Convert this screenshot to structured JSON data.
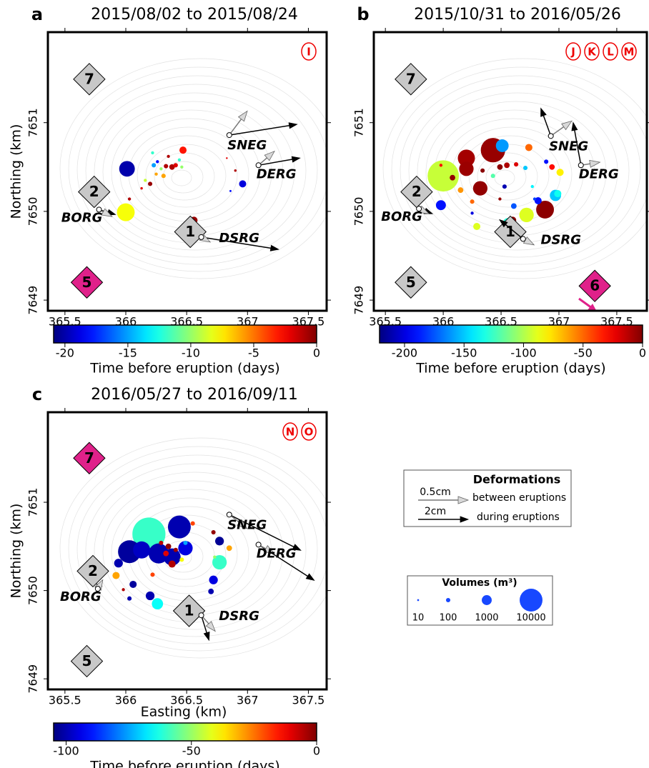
{
  "chart_data": [
    {
      "type": "scatter",
      "panel": "a",
      "title": "2015/08/02 to 2015/08/24",
      "ylabel": "Northing (km)",
      "xlim": [
        365.36,
        367.65
      ],
      "ylim": [
        7648.88,
        7652.02
      ],
      "xticks": [
        365.5,
        366,
        366.5,
        367,
        367.5
      ],
      "yticks": [
        7649,
        7650,
        7651
      ],
      "eruptions": [
        "I"
      ],
      "sites": [
        {
          "name": "7",
          "x": 365.7,
          "y": 7651.49,
          "color": "#c8c8c8"
        },
        {
          "name": "2",
          "x": 365.74,
          "y": 7650.22,
          "color": "#c8c8c8"
        },
        {
          "name": "1",
          "x": 366.53,
          "y": 7649.77,
          "color": "#c8c8c8"
        },
        {
          "name": "5",
          "x": 365.68,
          "y": 7649.2,
          "color": "#e0218a"
        }
      ],
      "stations": [
        {
          "name": "SNEG",
          "x": 366.85,
          "y": 7650.86,
          "inter": [
            0.18,
            0.24
          ],
          "co": [
            2.71,
            0.43
          ]
        },
        {
          "name": "DERG",
          "x": 367.09,
          "y": 7650.52,
          "inter": [
            0.16,
            0.14
          ],
          "co": [
            1.66,
            0.29
          ]
        },
        {
          "name": "BORG",
          "x": 365.78,
          "y": 7650.02,
          "inter": [
            0.13,
            -0.07
          ],
          "co": [
            0.66,
            -0.2
          ]
        },
        {
          "name": "DSRG",
          "x": 366.62,
          "y": 7649.71,
          "inter": [
            0.09,
            -0.05
          ],
          "co": [
            3.09,
            -0.49
          ]
        }
      ],
      "points": {
        "x": [
          366.0,
          366.01,
          366.47,
          366.96,
          366.56,
          366.38,
          366.33,
          366.41,
          366.23,
          366.31,
          366.2,
          366.26,
          366.22,
          366.16,
          366.44,
          366.29,
          366.03,
          366.46,
          366.35,
          366.25,
          366.13,
          366.9,
          366.86,
          366.83
        ],
        "y": [
          7649.99,
          7650.48,
          7650.69,
          7650.31,
          7649.9,
          7650.5,
          7650.51,
          7650.52,
          7650.52,
          7650.4,
          7650.31,
          7650.56,
          7650.66,
          7650.35,
          7650.58,
          7650.48,
          7650.14,
          7650.5,
          7650.62,
          7650.42,
          7650.26,
          7650.46,
          7650.23,
          7650.6
        ],
        "t": [
          -8,
          -20,
          -3,
          -19,
          -0.5,
          -1,
          -1,
          -2,
          -15,
          -6,
          -0.5,
          -18,
          -12,
          -9,
          -12,
          -10,
          -1,
          -10,
          -1,
          -6,
          -2,
          -1,
          -18,
          -2
        ],
        "volume": [
          5000,
          3500,
          400,
          400,
          400,
          200,
          100,
          100,
          100,
          100,
          100,
          40,
          40,
          40,
          40,
          40,
          40,
          40,
          40,
          40,
          20,
          20,
          12,
          8
        ]
      },
      "colorbar": {
        "label": "Time before eruption (days)",
        "clim": [
          -20.9,
          0
        ],
        "ticks": [
          -20,
          -15,
          -10,
          -5,
          0
        ]
      }
    },
    {
      "type": "scatter",
      "panel": "b",
      "title": "2015/10/31 to 2016/05/26",
      "xlim": [
        365.4,
        367.76
      ],
      "ylim": [
        7648.88,
        7652.02
      ],
      "xticks": [
        365.5,
        366,
        366.5,
        367,
        367.5
      ],
      "yticks": [
        7649,
        7650,
        7651
      ],
      "eruptions": [
        "J",
        "K",
        "L",
        "M"
      ],
      "sites": [
        {
          "name": "7",
          "x": 365.72,
          "y": 7651.49,
          "color": "#c8c8c8"
        },
        {
          "name": "2",
          "x": 365.77,
          "y": 7650.22,
          "color": "#c8c8c8"
        },
        {
          "name": "1",
          "x": 366.58,
          "y": 7649.77,
          "color": "#c8c8c8"
        },
        {
          "name": "5",
          "x": 365.72,
          "y": 7649.2,
          "color": "#c8c8c8"
        },
        {
          "name": "6",
          "x": 367.31,
          "y": 7649.16,
          "color": "#e0218a"
        }
      ],
      "stations": [
        {
          "name": "SNEG",
          "x": 366.93,
          "y": 7650.85,
          "inter": [
            0.21,
            0.15
          ],
          "co": [
            -0.4,
            1.11
          ]
        },
        {
          "name": "DERG",
          "x": 367.19,
          "y": 7650.52,
          "inter": [
            0.19,
            0.03
          ],
          "co": [
            -0.31,
            1.71
          ]
        },
        {
          "name": "BORG",
          "x": 365.79,
          "y": 7650.03,
          "inter": [
            0.1,
            -0.05
          ],
          "co": [
            0.54,
            -0.2
          ]
        },
        {
          "name": "DSRG",
          "x": 366.69,
          "y": 7649.69,
          "inter": [
            0.11,
            -0.06
          ],
          "co": [
            -0.94,
            0.77
          ]
        }
      ],
      "points": {
        "x": [
          366.0,
          366.43,
          366.88,
          366.2,
          366.2,
          366.32,
          366.72,
          366.51,
          366.97,
          365.98,
          366.56,
          366.6,
          366.74,
          367.01,
          366.29,
          366.82,
          366.99,
          366.61,
          366.08,
          366.15,
          366.49,
          366.55,
          366.94,
          366.63,
          366.71,
          366.89,
          366.25,
          366.43,
          366.53,
          366.34,
          366.77,
          366.25,
          365.98,
          366.79,
          366.49
        ],
        "y": [
          7650.4,
          7650.69,
          7650.02,
          7650.6,
          7650.48,
          7650.26,
          7649.96,
          7650.74,
          7650.18,
          7650.07,
          7649.87,
          7649.9,
          7650.72,
          7650.44,
          7649.83,
          7650.12,
          7650.2,
          7650.06,
          7650.38,
          7650.24,
          7650.5,
          7650.52,
          7650.5,
          7650.53,
          7650.49,
          7650.56,
          7650.11,
          7650.4,
          7650.28,
          7650.46,
          7650.28,
          7649.98,
          7650.52,
          7650.14,
          7650.14
        ],
        "t": [
          -95,
          -5,
          -3,
          -8,
          -6,
          -4,
          -90,
          -160,
          -150,
          -190,
          -130,
          -2,
          -50,
          -80,
          -90,
          -190,
          -135,
          -175,
          -4,
          -60,
          -3,
          -10,
          -30,
          -20,
          -150,
          -190,
          -50,
          -120,
          -210,
          -2,
          -140,
          -200,
          -30,
          -180,
          -5
        ],
        "volume": [
          24000,
          12000,
          5000,
          4500,
          2800,
          2800,
          2800,
          2000,
          1400,
          1000,
          1000,
          400,
          400,
          400,
          400,
          400,
          400,
          200,
          200,
          200,
          200,
          200,
          200,
          100,
          100,
          100,
          100,
          100,
          100,
          100,
          40,
          40,
          40,
          40,
          40
        ]
      },
      "colorbar": {
        "label": "Time before eruption (days)",
        "clim": [
          -221,
          0
        ],
        "ticks": [
          -200,
          -150,
          -100,
          -50,
          0
        ]
      }
    },
    {
      "type": "scatter",
      "panel": "c",
      "title": "2016/05/27 to 2016/09/11",
      "xlabel": "Easting (km)",
      "ylabel": "Northing (km)",
      "xlim": [
        365.36,
        367.65
      ],
      "ylim": [
        7648.88,
        7652.02
      ],
      "xticks": [
        365.5,
        366,
        366.5,
        367,
        367.5
      ],
      "yticks": [
        7649,
        7650,
        7651
      ],
      "eruptions": [
        "N",
        "O"
      ],
      "sites": [
        {
          "name": "7",
          "x": 365.7,
          "y": 7651.5,
          "color": "#e0218a"
        },
        {
          "name": "2",
          "x": 365.73,
          "y": 7650.22,
          "color": "#c8c8c8"
        },
        {
          "name": "1",
          "x": 366.52,
          "y": 7649.77,
          "color": "#c8c8c8"
        },
        {
          "name": "5",
          "x": 365.68,
          "y": 7649.2,
          "color": "#c8c8c8"
        }
      ],
      "stations": [
        {
          "name": "SNEG",
          "x": 366.85,
          "y": 7650.86,
          "inter": [
            0.18,
            -0.14
          ],
          "co": [
            2.86,
            -1.43
          ]
        },
        {
          "name": "DERG",
          "x": 367.09,
          "y": 7650.52,
          "inter": [
            0.16,
            -0.09
          ],
          "co": [
            2.23,
            -1.43
          ]
        },
        {
          "name": "BORG",
          "x": 365.77,
          "y": 7650.02,
          "inter": [
            0.05,
            0.09
          ],
          "co": [
            -0.06,
            -0.14
          ]
        },
        {
          "name": "DSRG",
          "x": 366.62,
          "y": 7649.72,
          "inter": [
            0.14,
            -0.16
          ],
          "co": [
            0.31,
            -1.0
          ]
        }
      ],
      "points": {
        "x": [
          366.19,
          366.44,
          366.03,
          366.27,
          366.38,
          366.13,
          366.49,
          366.77,
          366.26,
          365.94,
          366.77,
          366.72,
          366.2,
          366.06,
          365.92,
          366.38,
          366.7,
          366.35,
          366.33,
          366.85,
          366.41,
          366.29,
          366.46,
          366.03,
          366.72,
          366.49,
          366.22,
          366.55,
          365.98,
          366.73
        ],
        "y": [
          7650.64,
          7650.72,
          7650.44,
          7650.42,
          7650.38,
          7650.46,
          7650.48,
          7650.32,
          7649.85,
          7650.31,
          7650.56,
          7650.12,
          7649.94,
          7650.07,
          7650.17,
          7650.3,
          7649.99,
          7650.5,
          7650.42,
          7650.48,
          7650.46,
          7650.54,
          7650.35,
          7649.91,
          7650.66,
          7650.54,
          7650.18,
          7650.76,
          7650.01,
          7650.38
        ],
        "t": [
          -60,
          -100,
          -102,
          -100,
          -100,
          -98,
          -95,
          -60,
          -65,
          -100,
          -103,
          -95,
          -100,
          -102,
          -30,
          -5,
          -100,
          -2,
          -10,
          -30,
          -3,
          -6,
          -40,
          -100,
          -2,
          -75,
          -20,
          -20,
          -5,
          -50
        ],
        "volume": [
          28000,
          10000,
          10000,
          7000,
          4500,
          4500,
          2800,
          2800,
          1400,
          700,
          700,
          700,
          700,
          400,
          400,
          400,
          200,
          200,
          200,
          200,
          100,
          100,
          100,
          100,
          100,
          100,
          100,
          100,
          40,
          40
        ]
      },
      "colorbar": {
        "label": "Time before eruption (days)",
        "clim": [
          -105,
          0
        ],
        "ticks": [
          -100,
          -50,
          0
        ]
      }
    }
  ],
  "legend": {
    "deformations": {
      "title": "Deformations",
      "inter": {
        "value": 0.5,
        "label": "0.5cm",
        "text": "between eruptions"
      },
      "co": {
        "value": 2,
        "label": "2cm",
        "text": "during eruptions"
      }
    },
    "volumes": {
      "title": "Volumes (m³)",
      "sizes": [
        10,
        100,
        1000,
        10000
      ],
      "color": "#1848ff"
    }
  }
}
